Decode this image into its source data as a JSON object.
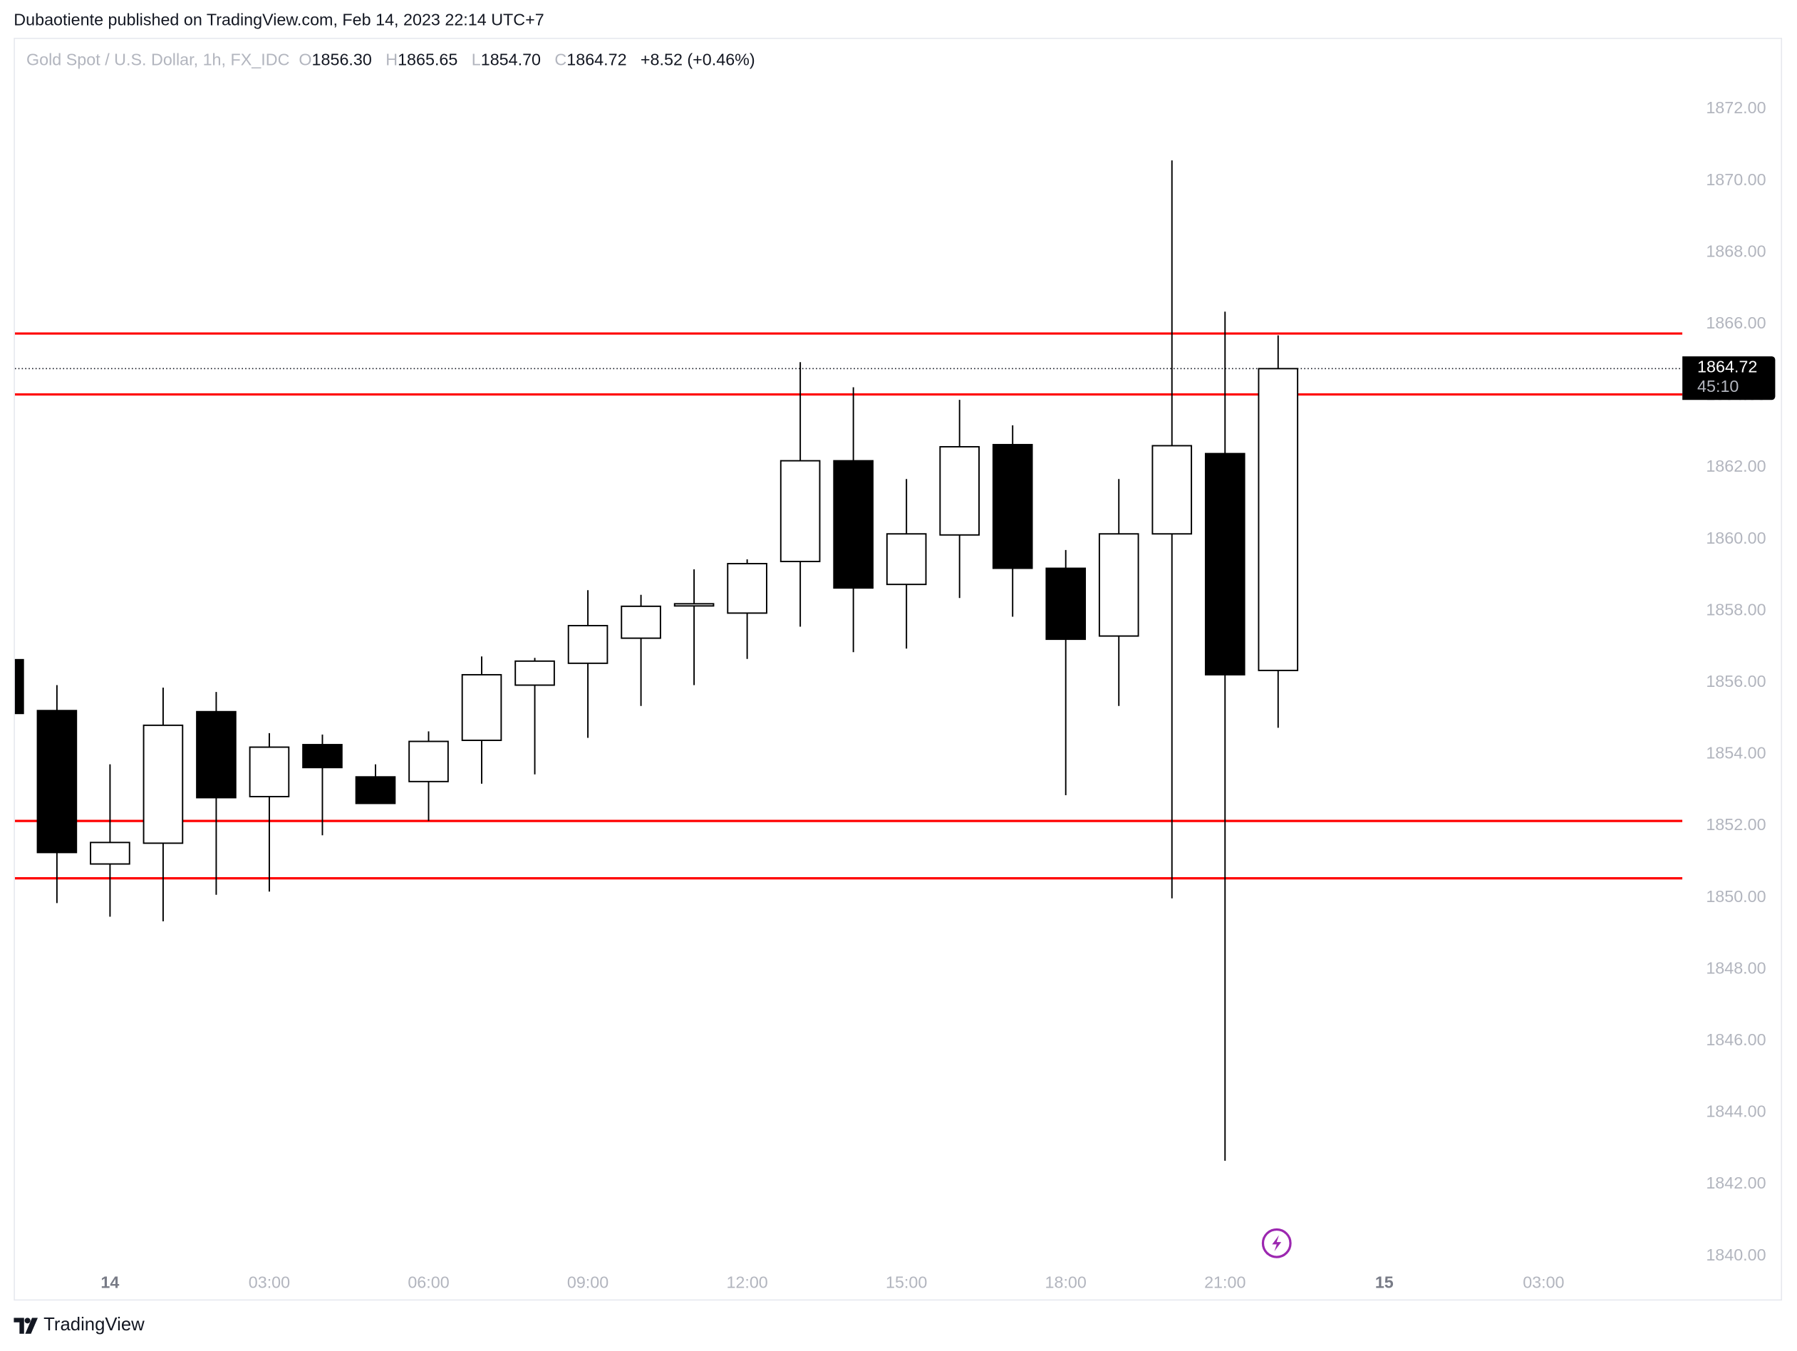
{
  "header": {
    "published": "Dubaotiente published on TradingView.com, Feb 14, 2023 22:14 UTC+7"
  },
  "legend": {
    "symbol": "Gold Spot / U.S. Dollar, 1h, FX_IDC",
    "o_label": "O",
    "open": "1856.30",
    "h_label": "H",
    "high": "1865.65",
    "l_label": "L",
    "low": "1854.70",
    "c_label": "C",
    "close": "1864.72",
    "change": "+8.52 (+0.46%)"
  },
  "price_tag": {
    "price": "1864.72",
    "countdown": "45:10"
  },
  "footer": {
    "brand": "TradingView"
  },
  "colors": {
    "up_body": "#ffffff",
    "down_body": "#000000",
    "wick": "#000000",
    "level_line": "#ff0000",
    "axis_text": "#b2b5be",
    "event_icon": "#9c27b0"
  },
  "event_icon": "lightning-icon",
  "chart_data": {
    "type": "candlestick",
    "title": "Gold Spot / U.S. Dollar, 1h, FX_IDC",
    "ylim": [
      1840,
      1873
    ],
    "y_ticks": [
      "1840.00",
      "1842.00",
      "1844.00",
      "1846.00",
      "1848.00",
      "1850.00",
      "1852.00",
      "1854.00",
      "1856.00",
      "1858.00",
      "1860.00",
      "1862.00",
      "1864.00",
      "1866.00",
      "1868.00",
      "1870.00",
      "1872.00"
    ],
    "x_ticks": [
      {
        "hour": 0,
        "label": "14",
        "bold": true
      },
      {
        "hour": 3,
        "label": "03:00"
      },
      {
        "hour": 6,
        "label": "06:00"
      },
      {
        "hour": 9,
        "label": "09:00"
      },
      {
        "hour": 12,
        "label": "12:00"
      },
      {
        "hour": 15,
        "label": "15:00"
      },
      {
        "hour": 18,
        "label": "18:00"
      },
      {
        "hour": 21,
        "label": "21:00"
      },
      {
        "hour": 24,
        "label": "15",
        "bold": true
      },
      {
        "hour": 27,
        "label": "03:00"
      }
    ],
    "candles": [
      {
        "hour": -2,
        "o": 1856.6,
        "h": 1856.6,
        "l": 1855.1,
        "c": 1855.1
      },
      {
        "hour": -1,
        "o": 1855.18,
        "h": 1855.89,
        "l": 1849.81,
        "c": 1851.22
      },
      {
        "hour": 0,
        "o": 1850.9,
        "h": 1853.68,
        "l": 1849.43,
        "c": 1851.5
      },
      {
        "hour": 1,
        "o": 1851.48,
        "h": 1855.82,
        "l": 1849.3,
        "c": 1854.77
      },
      {
        "hour": 2,
        "o": 1855.15,
        "h": 1855.7,
        "l": 1850.04,
        "c": 1852.75
      },
      {
        "hour": 3,
        "o": 1852.78,
        "h": 1854.55,
        "l": 1850.13,
        "c": 1854.16
      },
      {
        "hour": 4,
        "o": 1854.23,
        "h": 1854.51,
        "l": 1851.7,
        "c": 1853.59
      },
      {
        "hour": 5,
        "o": 1853.33,
        "h": 1853.68,
        "l": 1852.59,
        "c": 1852.59
      },
      {
        "hour": 6,
        "o": 1853.2,
        "h": 1854.6,
        "l": 1852.1,
        "c": 1854.32
      },
      {
        "hour": 7,
        "o": 1854.35,
        "h": 1856.69,
        "l": 1853.14,
        "c": 1856.18
      },
      {
        "hour": 8,
        "o": 1855.89,
        "h": 1856.65,
        "l": 1853.4,
        "c": 1856.56
      },
      {
        "hour": 9,
        "o": 1856.5,
        "h": 1858.54,
        "l": 1854.42,
        "c": 1857.55
      },
      {
        "hour": 10,
        "o": 1857.2,
        "h": 1858.41,
        "l": 1855.31,
        "c": 1858.09
      },
      {
        "hour": 11,
        "o": 1858.1,
        "h": 1859.12,
        "l": 1855.89,
        "c": 1858.16
      },
      {
        "hour": 12,
        "o": 1857.9,
        "h": 1859.4,
        "l": 1856.62,
        "c": 1859.28
      },
      {
        "hour": 13,
        "o": 1859.34,
        "h": 1864.9,
        "l": 1857.52,
        "c": 1862.15
      },
      {
        "hour": 14,
        "o": 1862.15,
        "h": 1864.2,
        "l": 1856.81,
        "c": 1858.6
      },
      {
        "hour": 15,
        "o": 1858.7,
        "h": 1861.64,
        "l": 1856.91,
        "c": 1860.11
      },
      {
        "hour": 16,
        "o": 1860.08,
        "h": 1863.85,
        "l": 1858.32,
        "c": 1862.54
      },
      {
        "hour": 17,
        "o": 1862.6,
        "h": 1863.14,
        "l": 1857.8,
        "c": 1859.15
      },
      {
        "hour": 18,
        "o": 1859.15,
        "h": 1859.66,
        "l": 1852.82,
        "c": 1857.17
      },
      {
        "hour": 19,
        "o": 1857.26,
        "h": 1861.64,
        "l": 1855.31,
        "c": 1860.11
      },
      {
        "hour": 20,
        "o": 1860.11,
        "h": 1870.53,
        "l": 1849.94,
        "c": 1862.57
      },
      {
        "hour": 21,
        "o": 1862.35,
        "h": 1866.31,
        "l": 1842.62,
        "c": 1856.18
      },
      {
        "hour": 22,
        "o": 1856.3,
        "h": 1865.65,
        "l": 1854.7,
        "c": 1864.72
      }
    ],
    "horizontal_lines": [
      1865.7,
      1864.0,
      1852.1,
      1850.5
    ],
    "last_price": 1864.72
  }
}
